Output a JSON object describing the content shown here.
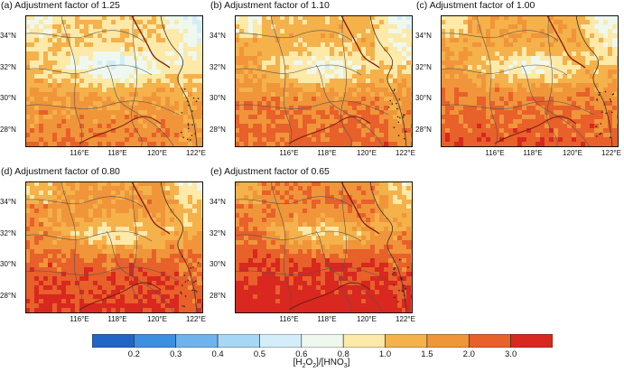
{
  "panels": [
    {
      "title": "(a) Adjustment factor of 1.25",
      "factor": 1.25
    },
    {
      "title": "(b) Adjustment factor of 1.10",
      "factor": 1.1
    },
    {
      "title": "(c) Adjustment factor of 1.00",
      "factor": 1.0
    },
    {
      "title": "(d) Adjustment factor of 0.80",
      "factor": 0.8
    },
    {
      "title": "(e) Adjustment factor of 0.65",
      "factor": 0.65
    }
  ],
  "lat_labels": [
    "34°N",
    "32°N",
    "30°N",
    "28°N"
  ],
  "lon_labels": [
    "116°E",
    "118°E",
    "120°E",
    "122°E"
  ],
  "colorbar": {
    "tick_labels": [
      "0.2",
      "0.3",
      "0.4",
      "0.5",
      "0.6",
      "0.8",
      "1.0",
      "1.5",
      "2.0",
      "3.0"
    ],
    "colors": [
      "#2166c4",
      "#3d8fe0",
      "#6fb3ee",
      "#a6d8f5",
      "#d3eef9",
      "#eef8ee",
      "#fde9a8",
      "#f5b14a",
      "#f0953a",
      "#e8602a",
      "#d8281f"
    ],
    "unit_main": "[H",
    "unit_sub1": "2",
    "unit_mid": "O",
    "unit_sub2": "2",
    "unit_rest": "]/[HNO",
    "unit_sub3": "3",
    "unit_end": "]"
  }
}
